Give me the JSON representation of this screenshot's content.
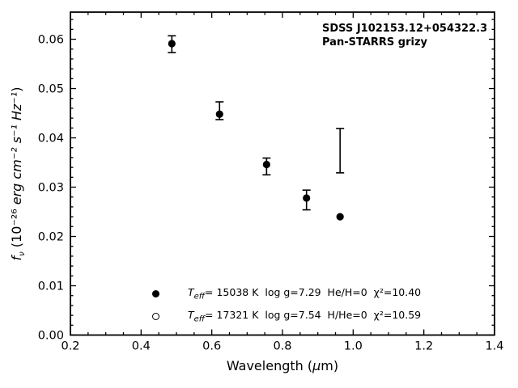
{
  "window": {
    "background": "#ffffff",
    "foreground": "#000000"
  },
  "annotation": {
    "line1": "SDSS J102153.12+054322.3",
    "line2": "Pan-STARRS grizy"
  },
  "axes": {
    "xlabel": {
      "pre": "Wavelength (",
      "mu": "μ",
      "post": "m)"
    },
    "ylabel": {
      "f": "f",
      "sub": "ν",
      "pre": " (10⁻²⁶ ",
      "units": "erg cm⁻² s⁻¹ Hz⁻¹",
      "post": ")"
    }
  },
  "legend": {
    "entries": [
      {
        "marker": "filled-circle",
        "t": "T",
        "sub": "eff",
        "rest": "= 15038 K  log g=7.29  He/H=0  χ²=10.40"
      },
      {
        "marker": "open-circle",
        "t": "T",
        "sub": "eff",
        "rest": "= 17321 K  log g=7.54  H/He=0  χ²=10.59"
      }
    ]
  },
  "chart_data": {
    "type": "scatter",
    "title": "",
    "xlabel": "Wavelength (μm)",
    "ylabel": "f_ν (10⁻²⁶ erg cm⁻² s⁻¹ Hz⁻¹)",
    "xlim": [
      0.2,
      1.4
    ],
    "ylim": [
      0.0,
      0.0655
    ],
    "grid": false,
    "tick_direction": "in",
    "legend_position": "lower-left inside, frameless",
    "x_ticks": [
      0.2,
      0.4,
      0.6,
      0.8,
      1.0,
      1.2,
      1.4
    ],
    "x_tick_labels": [
      "0.2",
      "0.4",
      "0.6",
      "0.8",
      "1.0",
      "1.2",
      "1.4"
    ],
    "y_ticks": [
      0.0,
      0.01,
      0.02,
      0.03,
      0.04,
      0.05,
      0.06
    ],
    "y_tick_labels": [
      "0.00",
      "0.01",
      "0.02",
      "0.03",
      "0.04",
      "0.05",
      "0.06"
    ],
    "x_minor_step": 0.05,
    "y_minor_step": 0.002,
    "bands": [
      "g",
      "r",
      "i",
      "z",
      "y"
    ],
    "series": [
      {
        "name": "observed-photometry-errorbars",
        "style": "errorbar-only",
        "color": "#000000",
        "points": [
          {
            "band": "g",
            "x": 0.487,
            "y": 0.059,
            "yerr": 0.0017
          },
          {
            "band": "r",
            "x": 0.622,
            "y": 0.0455,
            "yerr": 0.0018
          },
          {
            "band": "i",
            "x": 0.755,
            "y": 0.0342,
            "yerr": 0.0017
          },
          {
            "band": "z",
            "x": 0.868,
            "y": 0.0274,
            "yerr": 0.002
          },
          {
            "band": "y",
            "x": 0.963,
            "y": 0.0374,
            "yerr": 0.0045
          }
        ]
      },
      {
        "name": "model-Teff-15038K-filled-circles",
        "style": "filled-circle",
        "color": "#000000",
        "points": [
          {
            "band": "g",
            "x": 0.487,
            "y": 0.0591
          },
          {
            "band": "r",
            "x": 0.622,
            "y": 0.0448
          },
          {
            "band": "i",
            "x": 0.755,
            "y": 0.0346
          },
          {
            "band": "z",
            "x": 0.868,
            "y": 0.0278
          },
          {
            "band": "y",
            "x": 0.963,
            "y": 0.024
          }
        ]
      }
    ]
  }
}
